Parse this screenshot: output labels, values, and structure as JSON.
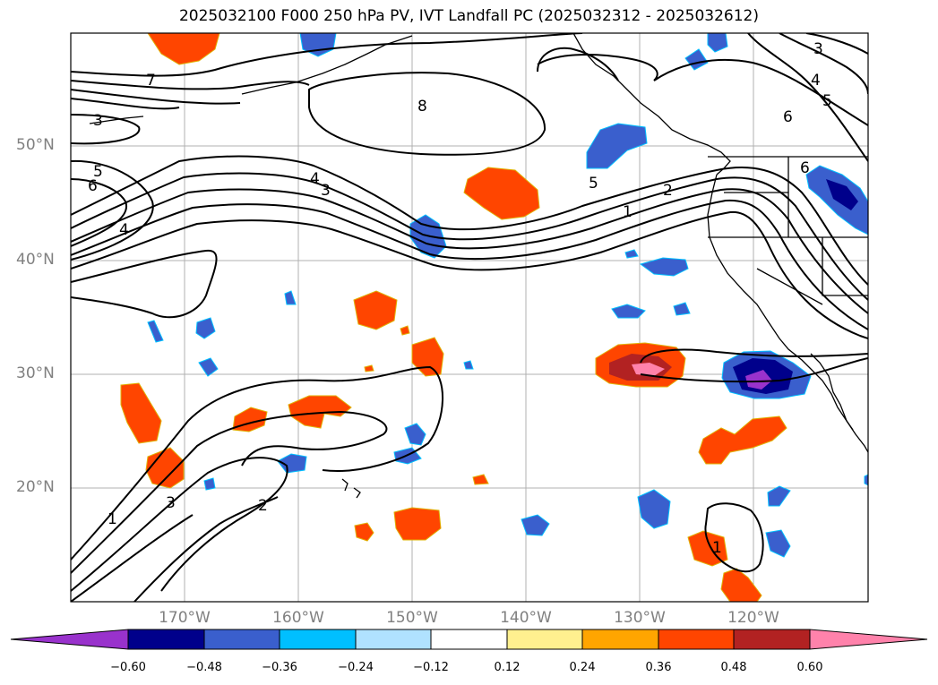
{
  "title": "2025032100 F000 250 hPa PV, IVT Landfall PC (2025032312 - 2025032612)",
  "lat_labels": [
    "50°N",
    "40°N",
    "30°N",
    "20°N"
  ],
  "lon_labels": [
    "170°W",
    "160°W",
    "150°W",
    "140°W",
    "130°W",
    "120°W"
  ],
  "contour_labels": [
    "7",
    "8",
    "3",
    "5",
    "6",
    "4",
    "4",
    "3",
    "5",
    "2",
    "1",
    "3",
    "4",
    "5",
    "6",
    "6",
    "1",
    "3",
    "2",
    "1"
  ],
  "colorbar": {
    "ticks": [
      "−0.60",
      "−0.48",
      "−0.36",
      "−0.24",
      "−0.12",
      "0.12",
      "0.24",
      "0.36",
      "0.48",
      "0.60"
    ],
    "colors": [
      "#9932cc",
      "#00008b",
      "#3a5fcd",
      "#00bfff",
      "#b0e2ff",
      "#ffffff",
      "#fff08f",
      "#ffa500",
      "#ff4500",
      "#b22222",
      "#ff82ab"
    ]
  }
}
